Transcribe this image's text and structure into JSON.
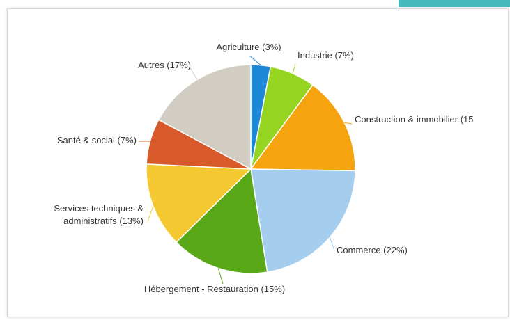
{
  "chart_data": {
    "type": "pie",
    "categories": [
      "Agriculture",
      "Industrie",
      "Construction & immobilier",
      "Commerce",
      "Hébergement - Restauration",
      "Services techniques & administratifs",
      "Santé & social",
      "Autres"
    ],
    "values": [
      3,
      7,
      15,
      22,
      15,
      13,
      7,
      17
    ],
    "colors": [
      "#1e88d8",
      "#95d420",
      "#f5a30e",
      "#a5cdee",
      "#58a818",
      "#f4c830",
      "#d85a2a",
      "#d2cdc2"
    ],
    "labels": [
      [
        "Agriculture (3%)"
      ],
      [
        "Industrie (7%)"
      ],
      [
        "Construction & immobilier (15"
      ],
      [
        "Commerce (22%)"
      ],
      [
        "Hébergement - Restauration (15%)"
      ],
      [
        "Services techniques &",
        "administratifs (13%)"
      ],
      [
        "Santé & social (7%)"
      ],
      [
        "Autres (17%)"
      ]
    ],
    "title": "",
    "legend": "none"
  },
  "colors": {
    "accent": "#46b9bd",
    "border": "#d9d9d9"
  }
}
